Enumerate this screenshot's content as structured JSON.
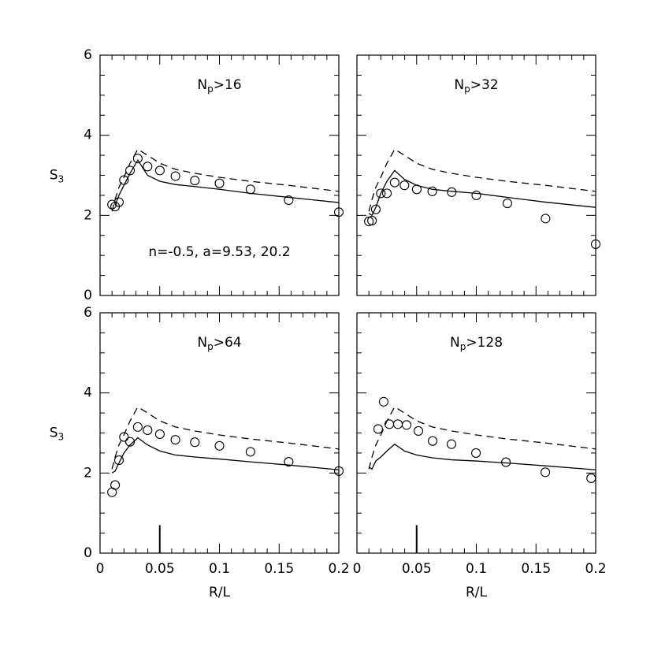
{
  "chart_data": [
    {
      "type": "line",
      "label_parts": [
        "N",
        "p",
        ">16"
      ],
      "ylabel_parts": [
        "S",
        "3"
      ],
      "annotation": "n=-0.5, a=9.53, 20.2",
      "xlim": [
        0,
        0.2
      ],
      "ylim": [
        0,
        6
      ],
      "xticks": [
        0,
        0.05,
        0.1,
        0.15,
        0.2
      ],
      "yticks": [
        0,
        2,
        4,
        6
      ],
      "show_xtick_labels": false,
      "show_ytick_labels": true,
      "series": [
        {
          "style": "circle",
          "color": "#000",
          "x": [
            0.01,
            0.0126,
            0.0158,
            0.02,
            0.0251,
            0.0316,
            0.0398,
            0.0501,
            0.0631,
            0.0794,
            0.1,
            0.126,
            0.158,
            0.2
          ],
          "values": [
            2.27,
            2.22,
            2.33,
            2.88,
            3.12,
            3.42,
            3.22,
            3.12,
            2.98,
            2.87,
            2.8,
            2.65,
            2.38,
            2.08
          ]
        },
        {
          "style": "solid",
          "color": "#000",
          "x": [
            0.0126,
            0.0158,
            0.02,
            0.0251,
            0.0316,
            0.0398,
            0.0501,
            0.0631,
            0.0794,
            0.1,
            0.126,
            0.158,
            0.2
          ],
          "values": [
            2.25,
            2.5,
            2.75,
            3.05,
            3.38,
            3.0,
            2.85,
            2.77,
            2.72,
            2.65,
            2.55,
            2.45,
            2.32
          ]
        },
        {
          "style": "dashed",
          "color": "#000",
          "x": [
            0.01,
            0.0126,
            0.0158,
            0.02,
            0.0251,
            0.0316,
            0.0398,
            0.0501,
            0.0631,
            0.0794,
            0.1,
            0.126,
            0.158,
            0.2
          ],
          "values": [
            2.1,
            2.4,
            2.7,
            2.95,
            3.3,
            3.65,
            3.5,
            3.3,
            3.15,
            3.05,
            2.95,
            2.85,
            2.75,
            2.6
          ]
        }
      ]
    },
    {
      "type": "line",
      "label_parts": [
        "N",
        "p",
        ">32"
      ],
      "xlim": [
        0,
        0.2
      ],
      "ylim": [
        0,
        6
      ],
      "xticks": [
        0,
        0.05,
        0.1,
        0.15,
        0.2
      ],
      "yticks": [
        0,
        2,
        4,
        6
      ],
      "show_xtick_labels": false,
      "show_ytick_labels": false,
      "series": [
        {
          "style": "circle",
          "color": "#000",
          "x": [
            0.01,
            0.0126,
            0.0158,
            0.02,
            0.0251,
            0.0316,
            0.0398,
            0.0501,
            0.0631,
            0.0794,
            0.1,
            0.126,
            0.158,
            0.2
          ],
          "values": [
            1.85,
            1.87,
            2.15,
            2.55,
            2.55,
            2.82,
            2.75,
            2.65,
            2.6,
            2.58,
            2.5,
            2.3,
            1.92,
            1.28
          ]
        },
        {
          "style": "solid",
          "color": "#000",
          "x": [
            0.01,
            0.0126,
            0.0158,
            0.02,
            0.0251,
            0.0316,
            0.0398,
            0.0501,
            0.0631,
            0.0794,
            0.1,
            0.126,
            0.158,
            0.2
          ],
          "values": [
            2.05,
            2.0,
            2.2,
            2.55,
            2.85,
            3.12,
            2.9,
            2.75,
            2.65,
            2.6,
            2.55,
            2.45,
            2.33,
            2.2
          ]
        },
        {
          "style": "dashed",
          "color": "#000",
          "x": [
            0.01,
            0.0126,
            0.0158,
            0.02,
            0.0251,
            0.0316,
            0.0398,
            0.0501,
            0.0631,
            0.0794,
            0.1,
            0.126,
            0.158,
            0.2
          ],
          "values": [
            2.1,
            2.4,
            2.7,
            2.95,
            3.3,
            3.65,
            3.5,
            3.3,
            3.15,
            3.05,
            2.95,
            2.85,
            2.75,
            2.6
          ]
        }
      ]
    },
    {
      "type": "line",
      "label_parts": [
        "N",
        "p",
        ">64"
      ],
      "ylabel_parts": [
        "S",
        "3"
      ],
      "xlabel": "R/L",
      "xlim": [
        0,
        0.2
      ],
      "ylim": [
        0,
        6
      ],
      "xticks": [
        0,
        0.05,
        0.1,
        0.15,
        0.2
      ],
      "yticks": [
        0,
        2,
        4,
        6
      ],
      "show_xtick_labels": true,
      "show_ytick_labels": true,
      "vline": {
        "x": 0.05,
        "y": [
          0,
          0.7
        ]
      },
      "series": [
        {
          "style": "circle",
          "color": "#000",
          "x": [
            0.01,
            0.0126,
            0.0158,
            0.02,
            0.0251,
            0.0316,
            0.0398,
            0.0501,
            0.0631,
            0.0794,
            0.1,
            0.126,
            0.158,
            0.2
          ],
          "values": [
            1.52,
            1.7,
            2.32,
            2.9,
            2.78,
            3.15,
            3.07,
            2.97,
            2.83,
            2.77,
            2.68,
            2.53,
            2.28,
            2.05
          ]
        },
        {
          "style": "solid",
          "color": "#000",
          "x": [
            0.01,
            0.0126,
            0.0158,
            0.02,
            0.0251,
            0.0316,
            0.0398,
            0.0501,
            0.0631,
            0.0794,
            0.1,
            0.126,
            0.158,
            0.2
          ],
          "values": [
            2.0,
            2.05,
            2.25,
            2.5,
            2.7,
            2.88,
            2.7,
            2.55,
            2.45,
            2.4,
            2.35,
            2.28,
            2.2,
            2.08
          ]
        },
        {
          "style": "dashed",
          "color": "#000",
          "x": [
            0.01,
            0.0126,
            0.0158,
            0.02,
            0.0251,
            0.0316,
            0.0398,
            0.0501,
            0.0631,
            0.0794,
            0.1,
            0.126,
            0.158,
            0.2
          ],
          "values": [
            2.1,
            2.4,
            2.7,
            2.95,
            3.3,
            3.65,
            3.5,
            3.3,
            3.15,
            3.05,
            2.95,
            2.85,
            2.75,
            2.6
          ]
        }
      ]
    },
    {
      "type": "line",
      "label_parts": [
        "N",
        "p",
        ">128"
      ],
      "xlabel": "R/L",
      "xlim": [
        0,
        0.2
      ],
      "ylim": [
        0,
        6
      ],
      "xticks": [
        0,
        0.05,
        0.1,
        0.15,
        0.2
      ],
      "yticks": [
        0,
        2,
        4,
        6
      ],
      "show_xtick_labels": true,
      "show_ytick_labels": false,
      "vline": {
        "x": 0.05,
        "y": [
          0,
          0.7
        ]
      },
      "series": [
        {
          "style": "circle",
          "color": "#000",
          "x": [
            0.0178,
            0.0224,
            0.0271,
            0.0343,
            0.0416,
            0.0515,
            0.0634,
            0.0792,
            0.0997,
            0.1248,
            0.1578,
            0.1962
          ],
          "values": [
            3.1,
            3.78,
            3.22,
            3.22,
            3.2,
            3.05,
            2.8,
            2.72,
            2.5,
            2.27,
            2.02,
            1.87
          ]
        },
        {
          "style": "solid",
          "color": "#000",
          "x": [
            0.01,
            0.0126,
            0.0158,
            0.02,
            0.0251,
            0.0316,
            0.0398,
            0.0501,
            0.0631,
            0.0794,
            0.1,
            0.126,
            0.158,
            0.2
          ],
          "values": [
            2.15,
            2.1,
            2.3,
            2.4,
            2.55,
            2.72,
            2.55,
            2.45,
            2.38,
            2.33,
            2.3,
            2.25,
            2.18,
            2.08
          ]
        },
        {
          "style": "dashed",
          "color": "#000",
          "x": [
            0.01,
            0.0126,
            0.0158,
            0.02,
            0.0251,
            0.0316,
            0.0398,
            0.0501,
            0.0631,
            0.0794,
            0.1,
            0.126,
            0.158,
            0.2
          ],
          "values": [
            2.1,
            2.4,
            2.7,
            2.95,
            3.3,
            3.65,
            3.5,
            3.3,
            3.15,
            3.05,
            2.95,
            2.85,
            2.75,
            2.6
          ]
        }
      ]
    }
  ]
}
